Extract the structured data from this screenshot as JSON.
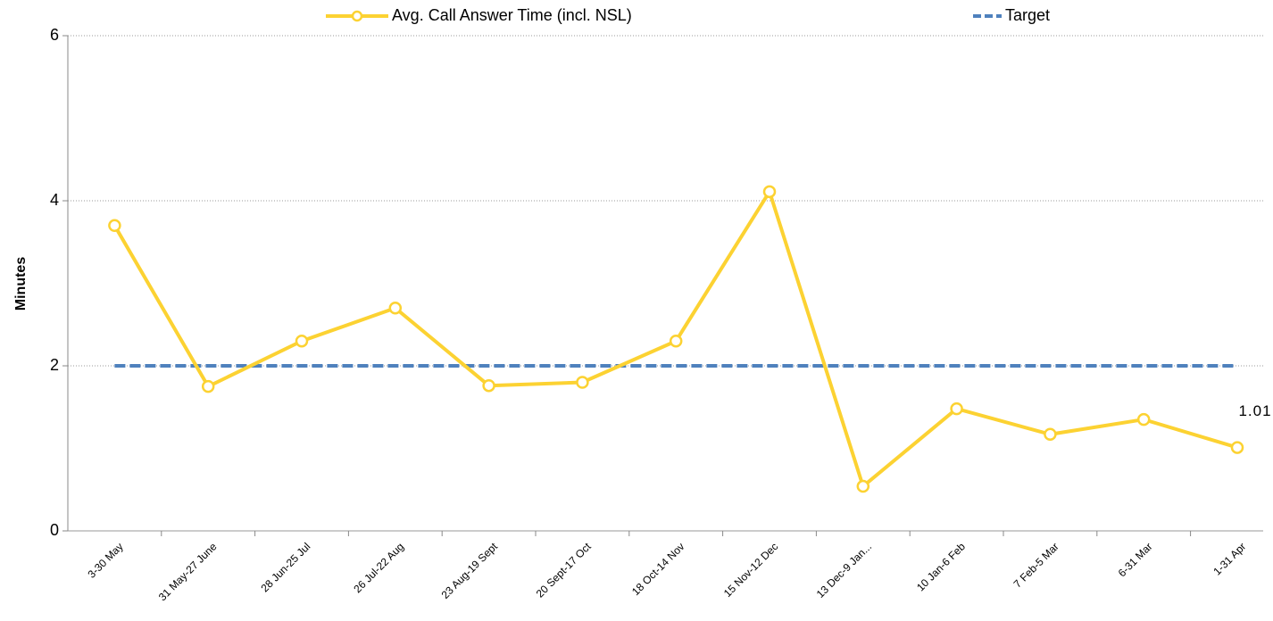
{
  "chart_data": {
    "type": "line",
    "y_label": "Minutes",
    "categories": [
      "3-30 May",
      "31 May-27 June",
      "28 Jun-25 Jul",
      "26 Jul-22 Aug",
      "23 Aug-19 Sept",
      "20 Sept-17 Oct",
      "18 Oct-14 Nov",
      "15 Nov-12 Dec",
      "13 Dec-9 Jan...",
      "10 Jan-6 Feb",
      "7 Feb-5 Mar",
      "6-31 Mar",
      "1-31 Apr"
    ],
    "series": [
      {
        "name": "Avg. Call Answer Time (incl. NSL)",
        "color": "#fcd232",
        "values": [
          3.7,
          1.75,
          2.3,
          2.7,
          1.76,
          1.8,
          2.3,
          4.11,
          0.54,
          1.48,
          1.17,
          1.35,
          1.01
        ]
      },
      {
        "name": "Target",
        "color": "#4f81bd",
        "dashed": true,
        "values": [
          2,
          2,
          2,
          2,
          2,
          2,
          2,
          2,
          2,
          2,
          2,
          2,
          2
        ]
      }
    ],
    "data_labels": [
      {
        "series": 0,
        "index": 12,
        "text": "1.01"
      }
    ],
    "ylim": [
      0,
      6
    ],
    "yticks": [
      0,
      2,
      4,
      6
    ],
    "grid": true
  }
}
